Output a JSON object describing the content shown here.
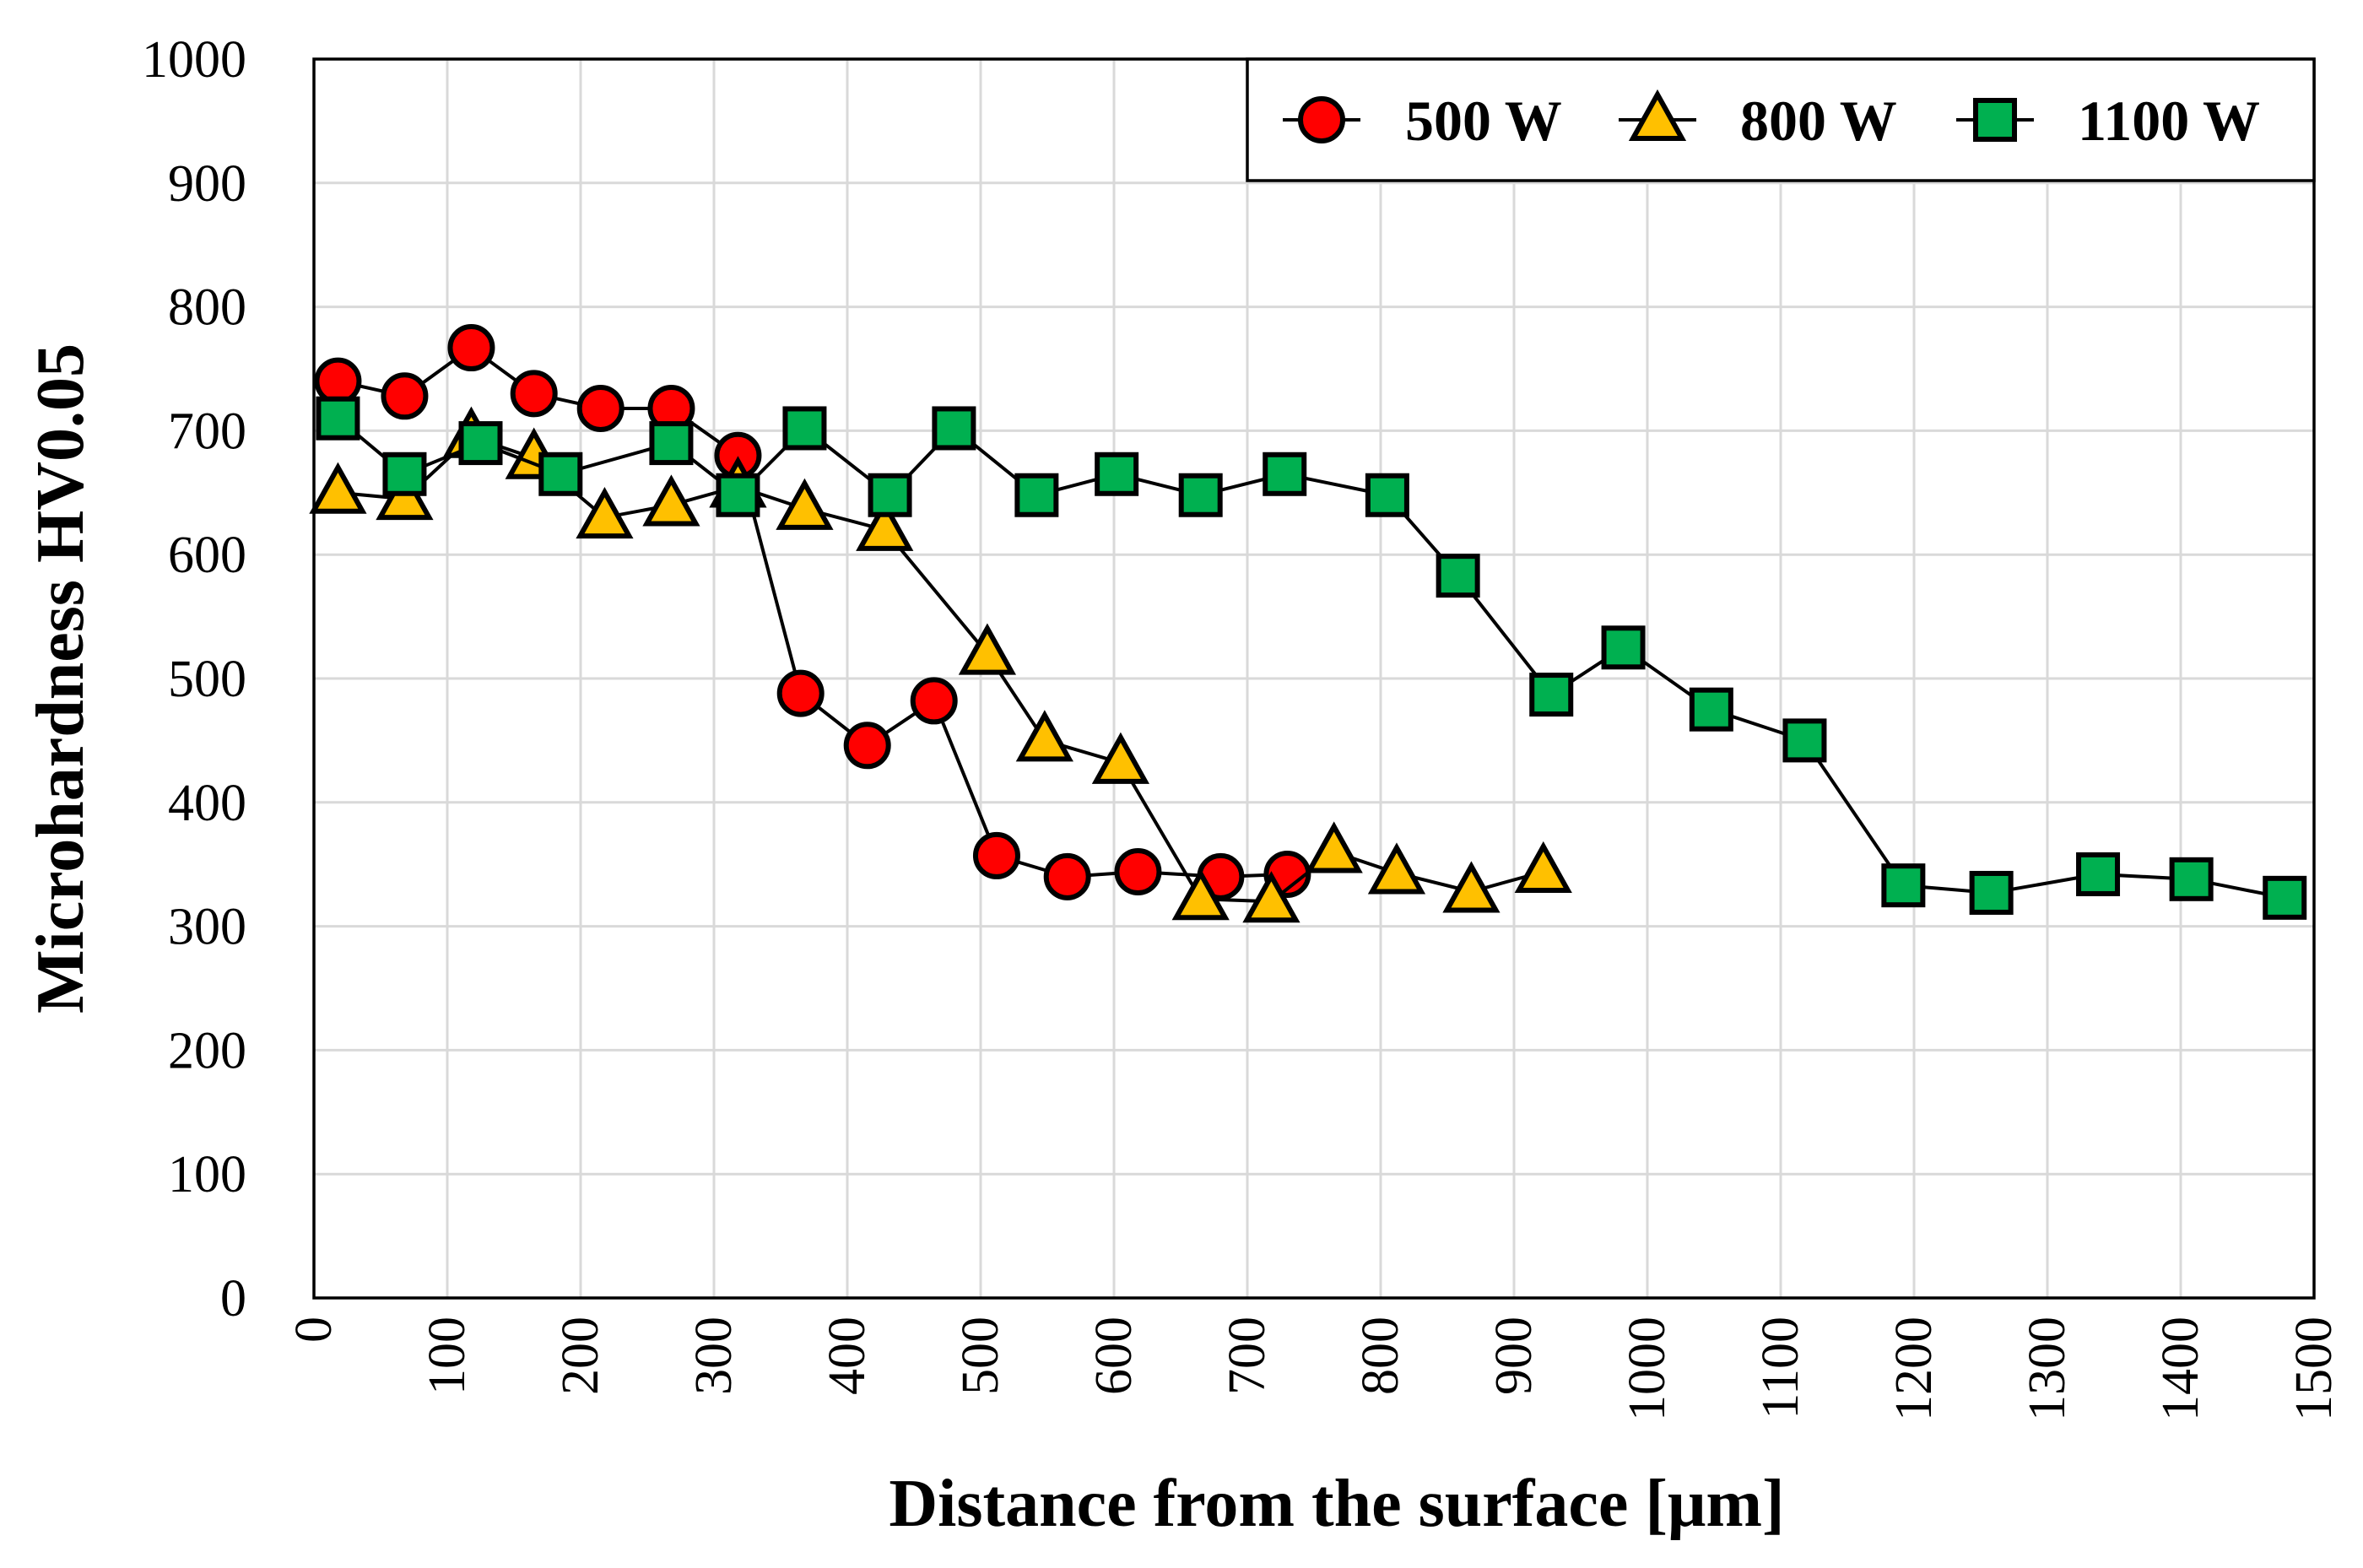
{
  "chart_data": {
    "type": "line",
    "xlabel": "Distance from the surface [μm]",
    "ylabel": "Microhardness HV0.05",
    "xlim": [
      0,
      1500
    ],
    "ylim": [
      0,
      1000
    ],
    "x_ticks": [
      0,
      100,
      200,
      300,
      400,
      500,
      600,
      700,
      800,
      900,
      1000,
      1100,
      1200,
      1300,
      1400,
      1500
    ],
    "y_ticks": [
      0,
      100,
      200,
      300,
      400,
      500,
      600,
      700,
      800,
      900,
      1000
    ],
    "grid": true,
    "legend_position": "top-right",
    "series": [
      {
        "name": "500 W",
        "marker": "circle",
        "color": "#ff0000",
        "x": [
          18,
          68,
          118,
          165,
          215,
          268,
          318,
          365,
          415,
          465,
          512,
          565,
          618,
          680,
          730
        ],
        "y": [
          740,
          728,
          767,
          730,
          718,
          718,
          680,
          488,
          446,
          482,
          357,
          340,
          344,
          340,
          342
        ]
      },
      {
        "name": "800 W",
        "marker": "triangle",
        "color": "#ffc000",
        "x": [
          18,
          68,
          118,
          165,
          218,
          268,
          318,
          368,
          428,
          505,
          548,
          605,
          665,
          718,
          765,
          812,
          868,
          922
        ],
        "y": [
          650,
          645,
          695,
          678,
          630,
          640,
          655,
          637,
          620,
          520,
          450,
          432,
          322,
          320,
          360,
          343,
          328,
          344
        ]
      },
      {
        "name": "1100 W",
        "marker": "square",
        "color": "#00b050",
        "x": [
          18,
          68,
          125,
          185,
          268,
          318,
          368,
          432,
          480,
          542,
          602,
          665,
          728,
          805,
          858,
          928,
          982,
          1048,
          1118,
          1192,
          1258,
          1338,
          1408,
          1478
        ],
        "y": [
          710,
          665,
          690,
          665,
          690,
          648,
          702,
          648,
          702,
          648,
          665,
          648,
          665,
          648,
          583,
          487,
          525,
          475,
          450,
          333,
          327,
          342,
          338,
          323
        ]
      }
    ]
  }
}
